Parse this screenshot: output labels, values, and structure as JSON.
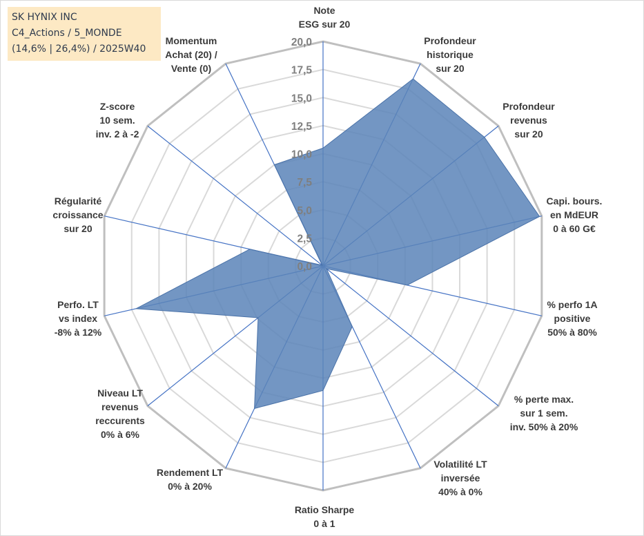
{
  "title_box": {
    "line1": "SK HYNIX INC",
    "line2": "C4_Actions / 5_MONDE",
    "line3": "(14,6% | 26,4%) / 2025W40"
  },
  "chart_data": {
    "type": "radar",
    "title": "SK HYNIX INC",
    "rlim": [
      0,
      20
    ],
    "ticks": [
      "0,0",
      "2,5",
      "5,0",
      "7,5",
      "10,0",
      "12,5",
      "15,0",
      "17,5",
      "20,0"
    ],
    "tick_values": [
      0,
      2.5,
      5,
      7.5,
      10,
      12.5,
      15,
      17.5,
      20
    ],
    "grid": true,
    "colors": {
      "fill": "#5a84b8",
      "edge": "#4a72a8",
      "grid_ring": "#bfbfbf",
      "grid_inner": "#d9d9d9",
      "spoke": "#4472c4"
    },
    "axes": [
      {
        "label": [
          "Note",
          "ESG sur 20"
        ],
        "value": 10.5
      },
      {
        "label": [
          "Profondeur",
          "historique",
          "sur 20"
        ],
        "value": 18.5
      },
      {
        "label": [
          "Profondeur",
          "revenus",
          "sur 20"
        ],
        "value": 18.4
      },
      {
        "label": [
          "Capi. bours.",
          "en MdEUR",
          "0 à 60 G€"
        ],
        "value": 19.8
      },
      {
        "label": [
          "% perfo 1A",
          "positive",
          "50% à 80%"
        ],
        "value": 7.7
      },
      {
        "label": [
          "% perte max.",
          "sur 1 sem.",
          "inv. 50% à 20%"
        ],
        "value": 0.4
      },
      {
        "label": [
          "Volatilité LT",
          "inversée",
          "40% à 0%"
        ],
        "value": 6.0
      },
      {
        "label": [
          "Ratio Sharpe",
          "0 à 1"
        ],
        "value": 11.1
      },
      {
        "label": [
          "Rendement LT",
          "0% à 20%"
        ],
        "value": 14.1
      },
      {
        "label": [
          "Niveau LT",
          "revenus",
          "reccurents",
          "0% à 6%"
        ],
        "value": 7.4
      },
      {
        "label": [
          "Perfo. LT",
          "vs index",
          "-8% à 12%"
        ],
        "value": 17.1
      },
      {
        "label": [
          "Régularité",
          "croissance",
          "sur 20"
        ],
        "value": 6.7
      },
      {
        "label": [
          "Z-score",
          "10 sem.",
          "inv. 2 à -2"
        ],
        "value": 0.1
      },
      {
        "label": [
          "Momentum",
          "Achat (20) /",
          "Vente (0)"
        ],
        "value": 10.0
      }
    ]
  }
}
